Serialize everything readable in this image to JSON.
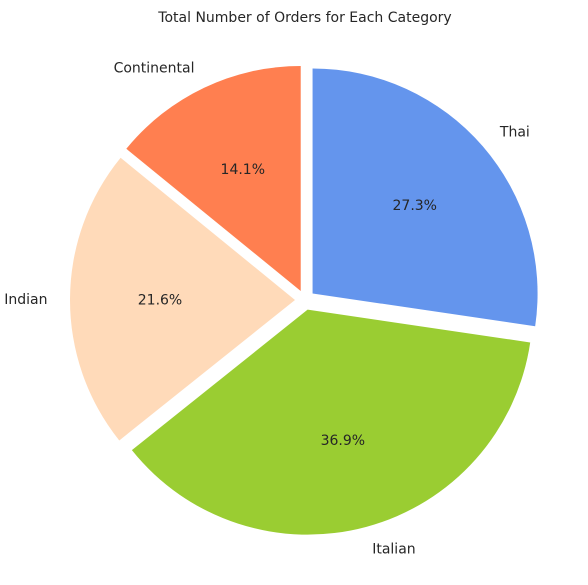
{
  "chart_data": {
    "type": "pie",
    "title": "Total Number of Orders for Each Category",
    "categories": [
      "Thai",
      "Italian",
      "Indian",
      "Continental"
    ],
    "values": [
      27.3,
      36.9,
      21.6,
      14.1
    ],
    "percent_labels": [
      "27.3%",
      "36.9%",
      "21.6%",
      "14.1%"
    ],
    "colors": [
      "#6495ED",
      "#9ACD32",
      "#FFDAB9",
      "#FF7F50"
    ],
    "start_angle_deg": 90,
    "direction": "clockwise",
    "exploded": true
  }
}
